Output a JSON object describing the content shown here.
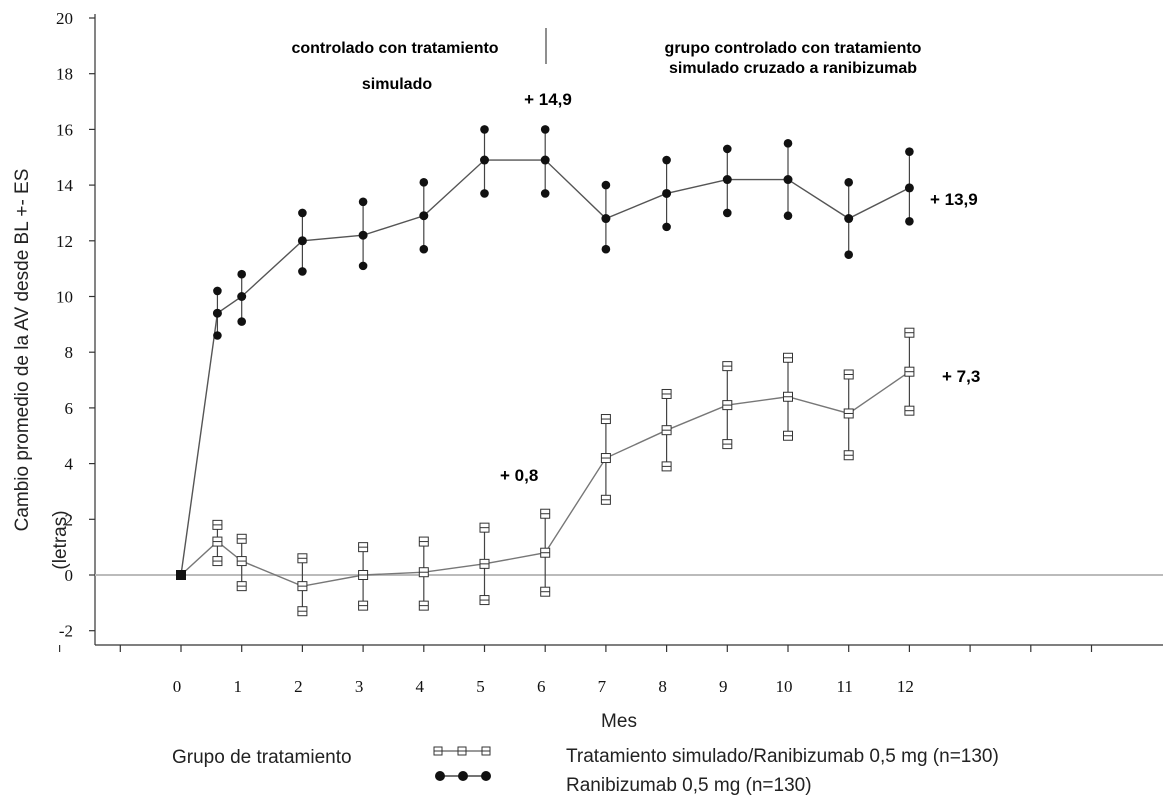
{
  "chart_data": {
    "type": "line",
    "ylabel_line1": "Cambio promedio de la AV desde BL +- ES",
    "ylabel_line2": "(letras)",
    "xlabel": "Mes",
    "ylim": [
      -2,
      20
    ],
    "yticks": [
      -2,
      0,
      2,
      4,
      6,
      8,
      10,
      12,
      14,
      16,
      18,
      20
    ],
    "xlim": [
      -2.2,
      15.8
    ],
    "xticks": [
      0,
      1,
      2,
      3,
      4,
      5,
      6,
      7,
      8,
      9,
      10,
      11,
      12
    ],
    "grid": false,
    "reference_line_y": 0,
    "period_labels": {
      "left_line1": "controlado con tratamiento",
      "left_line2": "simulado",
      "right_line1": "grupo controlado con tratamiento",
      "right_line2": "simulado cruzado a ranibizumab"
    },
    "annotations": {
      "ranibizumab_month6": "+ 14,9",
      "ranibizumab_month12": "+ 13,9",
      "sham_month6": "+ 0,8",
      "sham_month12": "+ 7,3"
    },
    "legend": {
      "title": "Grupo de tratamiento",
      "placement": "bottom"
    },
    "series": [
      {
        "name": "Ranibizumab 0,5 mg (n=130)",
        "marker": "filled-circle",
        "x": [
          0,
          0.6,
          1,
          2,
          3,
          4,
          5,
          6,
          7,
          8,
          9,
          10,
          11,
          12
        ],
        "y": [
          0,
          9.4,
          10.0,
          12.0,
          12.2,
          12.9,
          14.9,
          14.9,
          12.8,
          13.7,
          14.2,
          14.2,
          12.8,
          13.9
        ],
        "err_low": [
          0,
          8.6,
          9.1,
          10.9,
          11.1,
          11.7,
          13.7,
          13.7,
          11.7,
          12.5,
          13.0,
          12.9,
          11.5,
          12.7
        ],
        "err_high": [
          0,
          10.2,
          10.8,
          13.0,
          13.4,
          14.1,
          16.0,
          16.0,
          14.0,
          14.9,
          15.3,
          15.5,
          14.1,
          15.2
        ]
      },
      {
        "name": "Tratamiento simulado/Ranibizumab 0,5 mg (n=130)",
        "marker": "open-square",
        "x": [
          0,
          0.6,
          1,
          2,
          3,
          4,
          5,
          6,
          7,
          8,
          9,
          10,
          11,
          12
        ],
        "y": [
          0,
          1.2,
          0.5,
          -0.4,
          0.0,
          0.1,
          0.4,
          0.8,
          4.2,
          5.2,
          6.1,
          6.4,
          5.8,
          7.3
        ],
        "err_low": [
          0,
          0.5,
          -0.4,
          -1.3,
          -1.1,
          -1.1,
          -0.9,
          -0.6,
          2.7,
          3.9,
          4.7,
          5.0,
          4.3,
          5.9
        ],
        "err_high": [
          0,
          1.8,
          1.3,
          0.6,
          1.0,
          1.2,
          1.7,
          2.2,
          5.6,
          6.5,
          7.5,
          7.8,
          7.2,
          8.7
        ]
      }
    ]
  }
}
